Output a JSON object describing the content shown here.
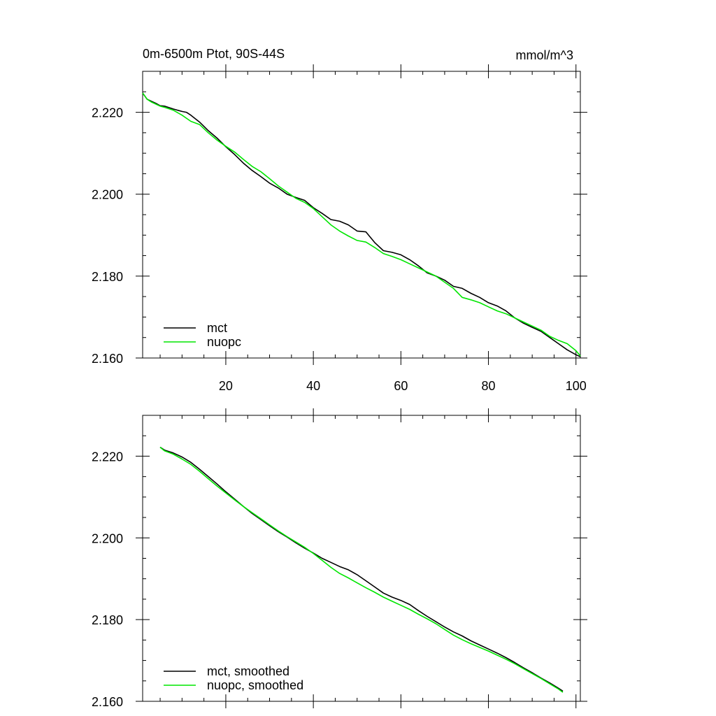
{
  "chart_data": [
    {
      "type": "line",
      "title": "0m-6500m Ptot, 90S-44S",
      "units": "mmol/m^3",
      "xlim": [
        1,
        101
      ],
      "ylim": [
        2.16,
        2.23
      ],
      "xticks": [
        20,
        40,
        60,
        80,
        100
      ],
      "xtick_labels": [
        "20",
        "40",
        "60",
        "80",
        "100"
      ],
      "yticks": [
        2.16,
        2.18,
        2.2,
        2.22
      ],
      "ytick_labels": [
        "2.160",
        "2.180",
        "2.200",
        "2.220"
      ],
      "legend_position": "bottom-left",
      "series": [
        {
          "name": "mct",
          "color": "#000000",
          "x": [
            1,
            2,
            3,
            4,
            5,
            6,
            8,
            10,
            11,
            12,
            14,
            16,
            18,
            20,
            22,
            24,
            26,
            28,
            30,
            32,
            34,
            36,
            38,
            40,
            42,
            44,
            46,
            48,
            50,
            52,
            54,
            56,
            58,
            60,
            62,
            64,
            66,
            68,
            70,
            72,
            74,
            76,
            78,
            80,
            82,
            84,
            86,
            88,
            90,
            92,
            94,
            96,
            98,
            100,
            101
          ],
          "values": [
            2.2247,
            2.2232,
            2.2227,
            2.2222,
            2.2216,
            2.2215,
            2.2208,
            2.2202,
            2.22,
            2.2193,
            2.2176,
            2.2155,
            2.2137,
            2.2116,
            2.2097,
            2.2076,
            2.2058,
            2.2043,
            2.2027,
            2.2015,
            2.2,
            2.1992,
            2.1985,
            2.1967,
            2.1953,
            2.1938,
            2.1934,
            2.1925,
            2.191,
            2.1908,
            2.1882,
            2.1862,
            2.1858,
            2.1852,
            2.184,
            2.1825,
            2.1808,
            2.18,
            2.179,
            2.1775,
            2.177,
            2.1758,
            2.1748,
            2.1735,
            2.1727,
            2.1715,
            2.1698,
            2.1685,
            2.1675,
            2.1665,
            2.165,
            2.1635,
            2.162,
            2.1608,
            2.1603
          ]
        },
        {
          "name": "nuopc",
          "color": "#00e600",
          "x": [
            1,
            2,
            3,
            4,
            5,
            6,
            8,
            10,
            12,
            14,
            16,
            18,
            20,
            22,
            24,
            26,
            28,
            30,
            32,
            34,
            36,
            38,
            40,
            42,
            44,
            46,
            48,
            50,
            52,
            54,
            56,
            58,
            60,
            62,
            64,
            66,
            68,
            70,
            72,
            74,
            76,
            78,
            80,
            82,
            84,
            86,
            88,
            90,
            92,
            94,
            96,
            98,
            100,
            101
          ],
          "values": [
            2.2247,
            2.2232,
            2.2225,
            2.222,
            2.2215,
            2.2212,
            2.2205,
            2.2193,
            2.2178,
            2.217,
            2.215,
            2.2132,
            2.2117,
            2.2103,
            2.2085,
            2.2068,
            2.2055,
            2.2038,
            2.202,
            2.2005,
            2.199,
            2.198,
            2.1965,
            2.1945,
            2.1925,
            2.191,
            2.1898,
            2.1887,
            2.1883,
            2.187,
            2.1855,
            2.1848,
            2.184,
            2.183,
            2.182,
            2.181,
            2.18,
            2.1785,
            2.177,
            2.1748,
            2.1742,
            2.1735,
            2.1725,
            2.1715,
            2.1708,
            2.1698,
            2.1688,
            2.1678,
            2.1668,
            2.1653,
            2.1643,
            2.1635,
            2.1618,
            2.1605
          ]
        }
      ]
    },
    {
      "type": "line",
      "xlim": [
        1,
        101
      ],
      "ylim": [
        2.16,
        2.23
      ],
      "xticks": [
        20,
        40,
        60,
        80,
        100
      ],
      "yticks": [
        2.16,
        2.18,
        2.2,
        2.22
      ],
      "ytick_labels": [
        "2.160",
        "2.180",
        "2.200",
        "2.220"
      ],
      "legend_position": "bottom-left",
      "series": [
        {
          "name": "mct, smoothed",
          "color": "#000000",
          "x": [
            5,
            6,
            8,
            10,
            12,
            14,
            16,
            18,
            20,
            22,
            24,
            26,
            28,
            30,
            32,
            34,
            36,
            38,
            40,
            42,
            44,
            46,
            48,
            50,
            52,
            54,
            56,
            58,
            60,
            62,
            64,
            66,
            68,
            70,
            72,
            74,
            76,
            78,
            80,
            82,
            84,
            86,
            88,
            90,
            92,
            94,
            96,
            97
          ],
          "values": [
            2.2222,
            2.2215,
            2.2208,
            2.2198,
            2.2185,
            2.2168,
            2.215,
            2.2132,
            2.2113,
            2.2095,
            2.2077,
            2.206,
            2.2045,
            2.203,
            2.2015,
            2.2002,
            2.1988,
            2.1975,
            2.1963,
            2.195,
            2.194,
            2.193,
            2.1922,
            2.191,
            2.1895,
            2.188,
            2.1865,
            2.1855,
            2.1847,
            2.1837,
            2.1822,
            2.1808,
            2.1795,
            2.1782,
            2.177,
            2.176,
            2.1748,
            2.1738,
            2.1728,
            2.1718,
            2.1707,
            2.1695,
            2.1682,
            2.167,
            2.1657,
            2.1645,
            2.1632,
            2.1625
          ]
        },
        {
          "name": "nuopc, smoothed",
          "color": "#00e600",
          "x": [
            5,
            6,
            8,
            10,
            12,
            14,
            16,
            18,
            20,
            22,
            24,
            26,
            28,
            30,
            32,
            34,
            36,
            38,
            40,
            42,
            44,
            46,
            48,
            50,
            52,
            54,
            56,
            58,
            60,
            62,
            64,
            66,
            68,
            70,
            72,
            74,
            76,
            78,
            80,
            82,
            84,
            86,
            88,
            90,
            92,
            94,
            96,
            97
          ],
          "values": [
            2.2222,
            2.2213,
            2.2205,
            2.2193,
            2.218,
            2.2163,
            2.2145,
            2.2127,
            2.211,
            2.2093,
            2.2077,
            2.2062,
            2.2047,
            2.2032,
            2.2017,
            2.2003,
            2.199,
            2.1977,
            2.1962,
            2.1945,
            2.1928,
            2.1913,
            2.1902,
            2.189,
            2.1878,
            2.1867,
            2.1855,
            2.1845,
            2.1835,
            2.1825,
            2.1813,
            2.1802,
            2.179,
            2.1776,
            2.1762,
            2.1751,
            2.1741,
            2.1732,
            2.1723,
            2.1713,
            2.1703,
            2.1692,
            2.168,
            2.1668,
            2.1656,
            2.1643,
            2.163,
            2.1622
          ]
        }
      ]
    }
  ]
}
